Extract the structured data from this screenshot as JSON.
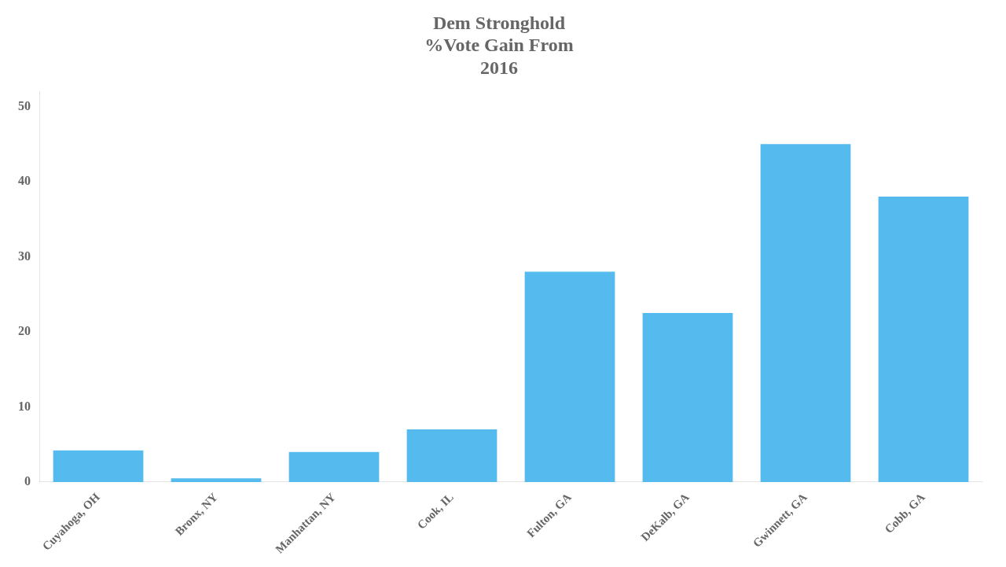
{
  "chart_data": {
    "type": "bar",
    "title": "Dem Stronghold\n%Vote Gain From\n2016",
    "categories": [
      "Cuyahoga, OH",
      "Bronx, NY",
      "Manhattan, NY",
      "Cook, IL",
      "Fulton, GA",
      "DeKalb, GA",
      "Gwinnett, GA",
      "Cobb, GA"
    ],
    "values": [
      4.2,
      0.5,
      4.0,
      7.0,
      28.0,
      22.5,
      45.0,
      38.0
    ],
    "color": "#55BBEE",
    "ylim": [
      0,
      52
    ],
    "yticks": [
      0,
      10,
      20,
      30,
      40,
      50
    ],
    "grid": false
  }
}
